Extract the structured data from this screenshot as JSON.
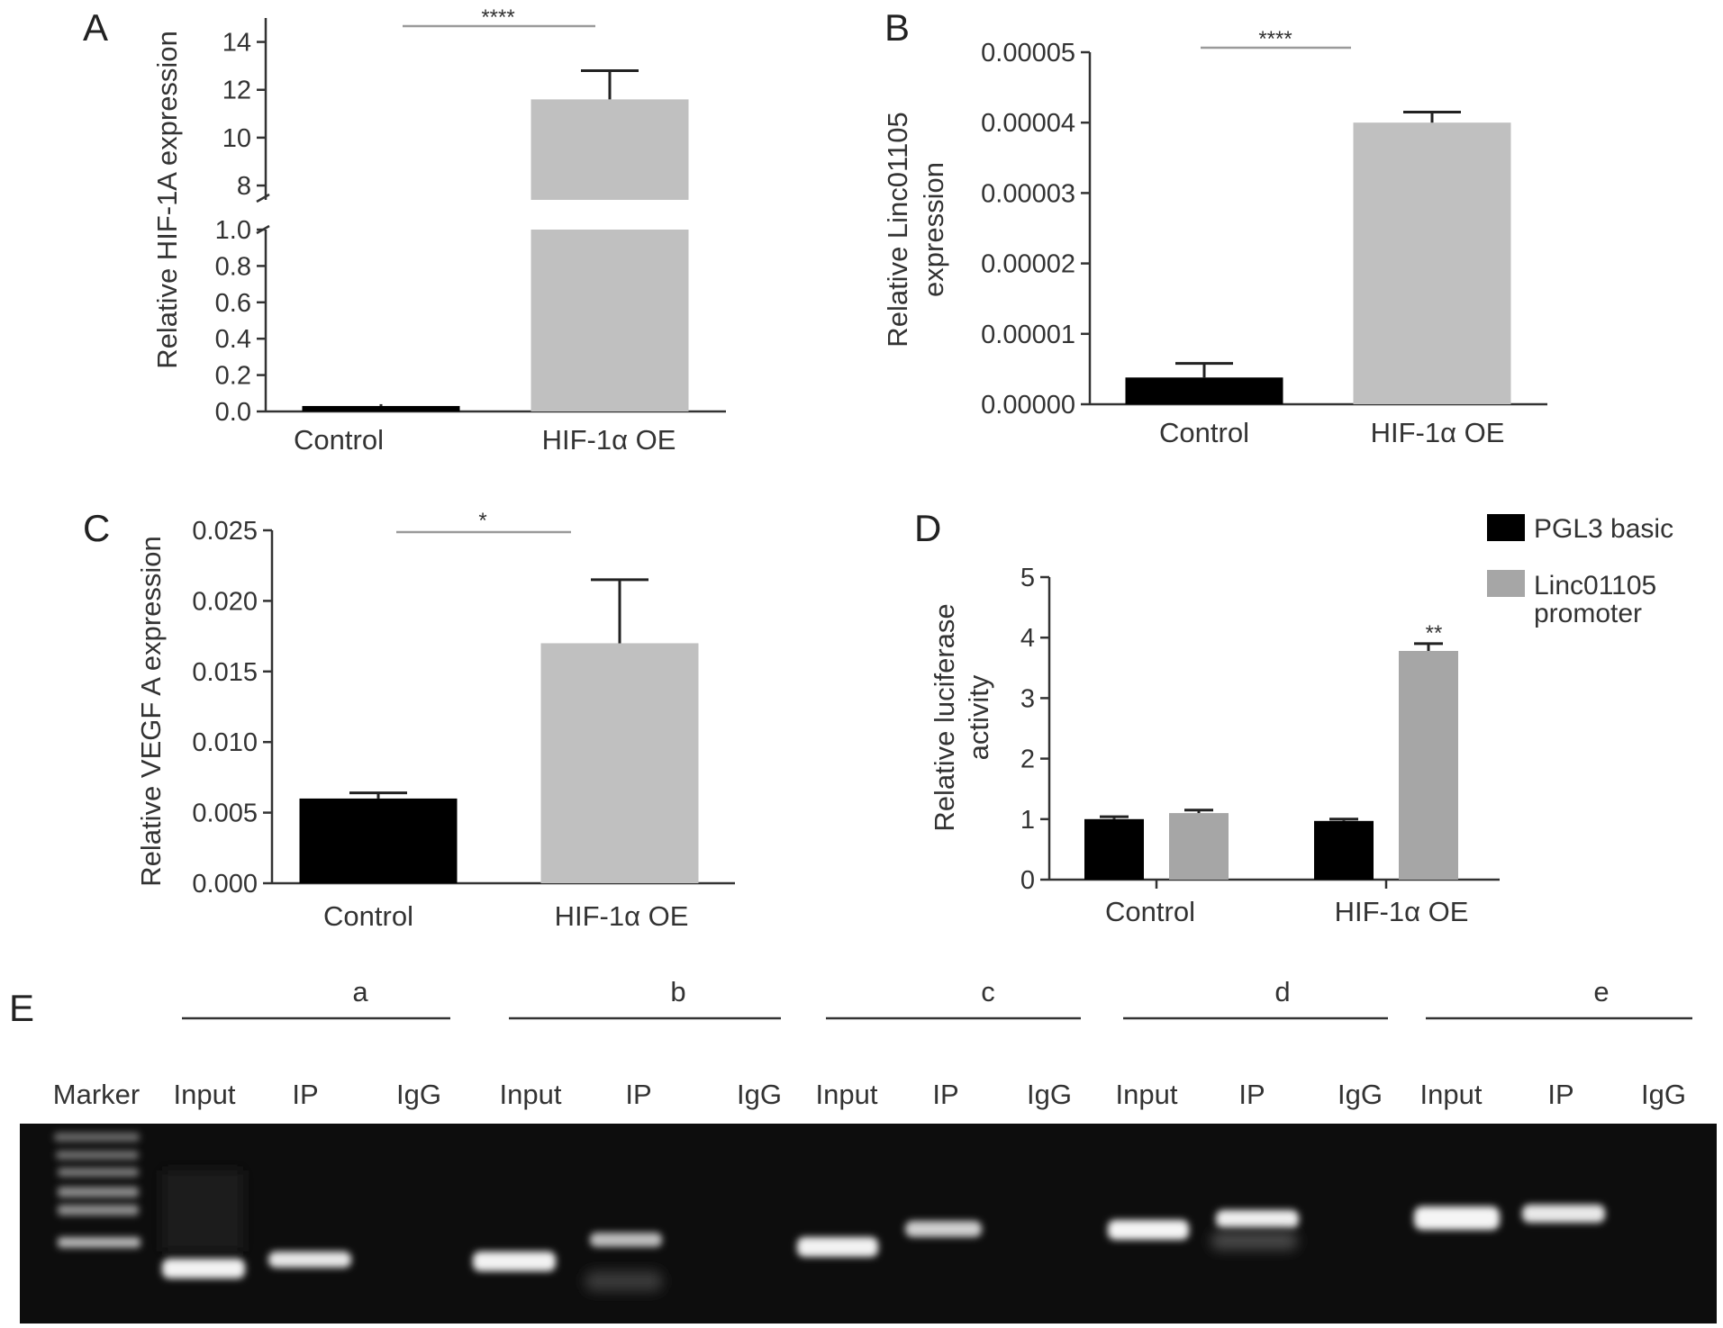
{
  "chart_data": [
    {
      "panel": "A",
      "type": "bar",
      "categories": [
        "Control",
        "HIF-1α OE"
      ],
      "values": [
        0.03,
        11.6
      ],
      "errors": [
        0.01,
        1.2
      ],
      "colors": [
        "#000000",
        "#c0c0c0"
      ],
      "ylabel": "Relative HIF-1A expression",
      "axis_break": true,
      "lower_ylim": [
        0,
        1.0
      ],
      "lower_ticks": [
        "0.0",
        "0.2",
        "0.4",
        "0.6",
        "0.8",
        "1.0"
      ],
      "upper_ylim": [
        7.4,
        15
      ],
      "upper_ticks": [
        "8",
        "10",
        "12",
        "14"
      ],
      "significance": "****"
    },
    {
      "panel": "B",
      "type": "bar",
      "categories": [
        "Control",
        "HIF-1α OE"
      ],
      "values": [
        3.8e-06,
        4e-05
      ],
      "errors": [
        2e-06,
        1.5e-06
      ],
      "colors": [
        "#000000",
        "#c0c0c0"
      ],
      "ylabel": [
        "Relative Linc01105",
        "expression"
      ],
      "ylim": [
        0,
        5e-05
      ],
      "ticks": [
        "0.00000",
        "0.00001",
        "0.00002",
        "0.00003",
        "0.00004",
        "0.00005"
      ],
      "significance": "****"
    },
    {
      "panel": "C",
      "type": "bar",
      "categories": [
        "Control",
        "HIF-1α OE"
      ],
      "values": [
        0.006,
        0.017
      ],
      "errors": [
        0.0004,
        0.0045
      ],
      "colors": [
        "#000000",
        "#c0c0c0"
      ],
      "ylabel": "Relative VEGF A expression",
      "ylim": [
        0,
        0.025
      ],
      "ticks": [
        "0.000",
        "0.005",
        "0.010",
        "0.015",
        "0.020",
        "0.025"
      ],
      "significance": "*"
    },
    {
      "panel": "D",
      "type": "bar",
      "categories": [
        "Control",
        "HIF-1α OE"
      ],
      "series": [
        {
          "name": "PGL3 basic",
          "values": [
            1.0,
            0.97
          ],
          "errors": [
            0.04,
            0.03
          ],
          "color": "#000000"
        },
        {
          "name": [
            "Linc01105",
            "promoter"
          ],
          "values": [
            1.1,
            3.78
          ],
          "errors": [
            0.05,
            0.12
          ],
          "color": "#a6a6a6"
        }
      ],
      "ylabel": [
        "Relative luciferase",
        "activity"
      ],
      "ylim": [
        0,
        5
      ],
      "ticks": [
        "0",
        "1",
        "2",
        "3",
        "4",
        "5"
      ],
      "legend_position": "top-right",
      "significance": "**"
    }
  ],
  "gel": {
    "panel": "E",
    "marker_label": "Marker",
    "groups": [
      {
        "label": "a",
        "lanes": [
          "Input",
          "IP",
          "IgG"
        ]
      },
      {
        "label": "b",
        "lanes": [
          "Input",
          "IP",
          "IgG"
        ]
      },
      {
        "label": "c",
        "lanes": [
          "Input",
          "IP",
          "IgG"
        ]
      },
      {
        "label": "d",
        "lanes": [
          "Input",
          "IP",
          "IgG"
        ]
      },
      {
        "label": "e",
        "lanes": [
          "Input",
          "IP",
          "IgG"
        ]
      }
    ]
  }
}
